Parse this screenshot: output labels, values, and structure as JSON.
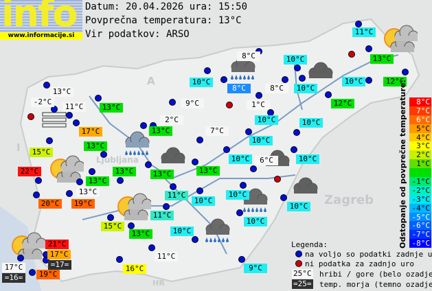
{
  "logo": {
    "text": "info",
    "url": "www.informacije.si"
  },
  "header": {
    "date_line": "Datum: 20.04.2026 ura: 15:50",
    "avg_line": "Povprečna temperatura: 13°C",
    "source_line": "Vir podatkov: ARSO"
  },
  "map_labels": {
    "austria": "A",
    "italy": "I",
    "croatia": "HR",
    "zagreb": "Zagreb",
    "ljubljana": "Ljubljana"
  },
  "colors": {
    "green": "#00e000",
    "cyan": "#22eef2",
    "teal": "#33e8c8",
    "white": "#f6f6f6",
    "yellowgreen": "#ccf200",
    "yellow": "#ffff00",
    "orange": "#ffa800",
    "orangered": "#ff6400",
    "red": "#ff1010",
    "blue": "#1e8cff",
    "dark": "#303030"
  },
  "stations": [
    {
      "t": "11°C",
      "c": "cyan"
    },
    {
      "t": "13°C",
      "c": "green"
    },
    {
      "t": "8°C",
      "c": "white"
    },
    {
      "t": "10°C",
      "c": "cyan"
    },
    {
      "t": "10°C",
      "c": "cyan"
    },
    {
      "t": "8°C",
      "c": "blue"
    },
    {
      "t": "8°C",
      "c": "white"
    },
    {
      "t": "10°C",
      "c": "cyan"
    },
    {
      "t": "10°C",
      "c": "cyan"
    },
    {
      "t": "12°C",
      "c": "green"
    },
    {
      "t": "12°C",
      "c": "green"
    },
    {
      "t": "1°C",
      "c": "white"
    },
    {
      "t": "10°C",
      "c": "cyan"
    },
    {
      "t": "10°C",
      "c": "cyan"
    },
    {
      "t": "7°C",
      "c": "white"
    },
    {
      "t": "10°C",
      "c": "cyan"
    },
    {
      "t": "13°C",
      "c": "white"
    },
    {
      "t": "-2°C",
      "c": "white"
    },
    {
      "t": "11°C",
      "c": "white"
    },
    {
      "t": "13°C",
      "c": "green"
    },
    {
      "t": "9°C",
      "c": "white"
    },
    {
      "t": "2°C",
      "c": "white"
    },
    {
      "t": "13°C",
      "c": "green"
    },
    {
      "t": "17°C",
      "c": "orange"
    },
    {
      "t": "13°C",
      "c": "green"
    },
    {
      "t": "15°C",
      "c": "yellowgreen"
    },
    {
      "t": "10°C",
      "c": "cyan"
    },
    {
      "t": "6°C",
      "c": "white"
    },
    {
      "t": "10°C",
      "c": "cyan"
    },
    {
      "t": "10°C",
      "c": "cyan"
    },
    {
      "t": "10°C",
      "c": "cyan"
    },
    {
      "t": "10°C",
      "c": "cyan"
    },
    {
      "t": "9°C",
      "c": "cyan"
    },
    {
      "t": "22°C",
      "c": "red"
    },
    {
      "t": "13°C",
      "c": "green"
    },
    {
      "t": "13°C",
      "c": "green"
    },
    {
      "t": "13°C",
      "c": "green"
    },
    {
      "t": "13°C",
      "c": "green"
    },
    {
      "t": "13°C",
      "c": "white"
    },
    {
      "t": "20°C",
      "c": "orangered"
    },
    {
      "t": "19°C",
      "c": "orangered"
    },
    {
      "t": "11°C",
      "c": "teal"
    },
    {
      "t": "10°C",
      "c": "cyan"
    },
    {
      "t": "11°C",
      "c": "teal"
    },
    {
      "t": "15°C",
      "c": "yellowgreen"
    },
    {
      "t": "13°C",
      "c": "green"
    },
    {
      "t": "10°C",
      "c": "cyan"
    },
    {
      "t": "11°C",
      "c": "white"
    },
    {
      "t": "16°C",
      "c": "yellow"
    },
    {
      "t": "21°C",
      "c": "red"
    },
    {
      "t": "17°C",
      "c": "orange"
    },
    {
      "t": "=17=",
      "c": "dark"
    },
    {
      "t": "17°C",
      "c": "white"
    },
    {
      "t": "=16=",
      "c": "dark"
    },
    {
      "t": "19°C",
      "c": "orangered"
    }
  ],
  "scale": {
    "title": "Odstopanje od povprečne temperature:",
    "steps": [
      {
        "t": "8°C",
        "c": "#ff0000"
      },
      {
        "t": "7°C",
        "c": "#ff3a00"
      },
      {
        "t": "6°C",
        "c": "#ff6a00"
      },
      {
        "t": "5°C",
        "c": "#ff9a00"
      },
      {
        "t": "4°C",
        "c": "#ffc800"
      },
      {
        "t": "3°C",
        "c": "#ffff00"
      },
      {
        "t": "2°C",
        "c": "#c8f000"
      },
      {
        "t": "1°C",
        "c": "#60e000"
      },
      {
        "t": "",
        "c": "#00e000"
      },
      {
        "t": "-1°C",
        "c": "#00e870"
      },
      {
        "t": "-2°C",
        "c": "#00f0c0"
      },
      {
        "t": "-3°C",
        "c": "#00e8f0"
      },
      {
        "t": "-4°C",
        "c": "#00b8ff"
      },
      {
        "t": "-5°C",
        "c": "#0090ff"
      },
      {
        "t": "-6°C",
        "c": "#0060ff"
      },
      {
        "t": "-7°C",
        "c": "#0030ff"
      },
      {
        "t": "-8°C",
        "c": "#0000ff"
      }
    ]
  },
  "legend": {
    "title": "Legenda:",
    "available": "na voljo so podatki zadnje ure",
    "missing": "ni podatka za zadnjo uro",
    "hill_sample": "25°C",
    "hill": "hribi / gore (belo ozadje)",
    "sea_sample": "=25=",
    "sea": "temp. morja (temno ozadje)"
  },
  "icons": [
    "sun-cloud-icon",
    "rain-cloud-icon",
    "dark-cloud-icon",
    "fog-icon"
  ]
}
